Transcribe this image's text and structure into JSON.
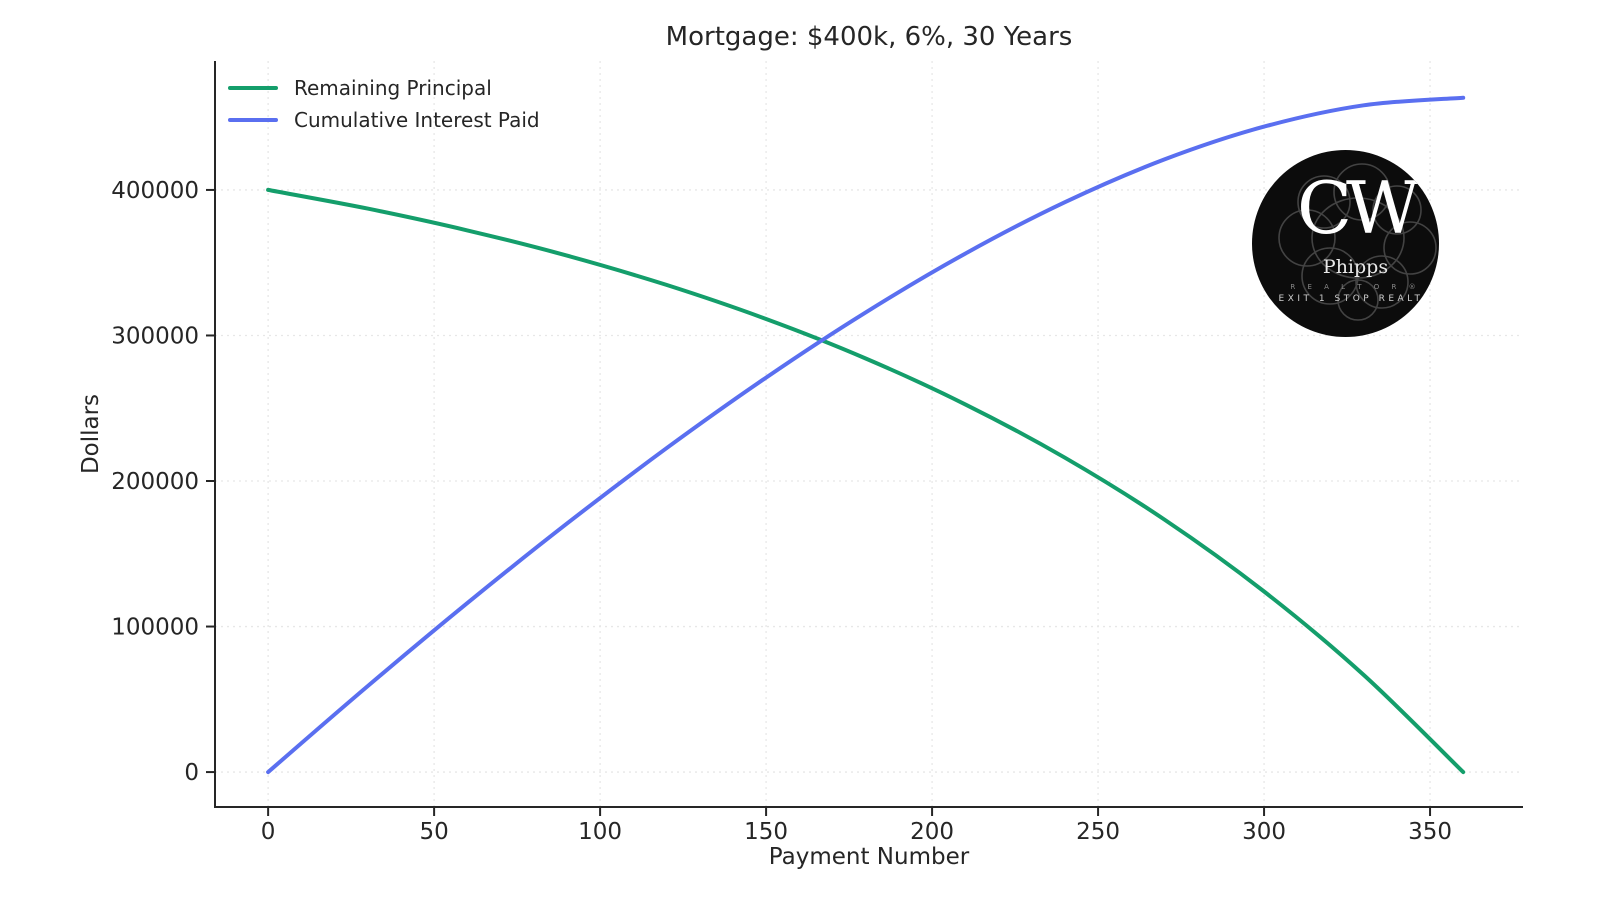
{
  "title": "Mortgage: $400k, 6%, 30 Years",
  "axes": {
    "x_label": "Payment Number",
    "y_label": "Dollars"
  },
  "legend": {
    "items": [
      {
        "label": "Remaining Principal",
        "color": "#149e6b"
      },
      {
        "label": "Cumulative Interest Paid",
        "color": "#5a6ff0"
      }
    ]
  },
  "colors": {
    "principal_line": "#149e6b",
    "interest_line": "#5a6ff0",
    "axis": "#262626",
    "grid": "#e7e7e7",
    "text": "#262626"
  },
  "chart_data": {
    "type": "line",
    "title": "Mortgage: $400k, 6%, 30 Years",
    "xlabel": "Payment Number",
    "ylabel": "Dollars",
    "x": [
      0,
      30,
      60,
      90,
      120,
      150,
      180,
      210,
      240,
      270,
      300,
      330,
      360
    ],
    "series": [
      {
        "name": "Remaining Principal",
        "color": "#149e6b",
        "values": [
          400000,
          387146,
          372218,
          354879,
          334743,
          311354,
          284196,
          252648,
          216016,
          173480,
          124087,
          66752,
          0
        ]
      },
      {
        "name": "Cumulative Interest Paid",
        "color": "#5a6ff0",
        "values": [
          0,
          59092,
          116110,
          170717,
          222527,
          271084,
          315872,
          356270,
          391584,
          420994,
          443547,
          458158,
          463352
        ]
      }
    ],
    "x_ticks": [
      0,
      50,
      100,
      150,
      200,
      250,
      300,
      350
    ],
    "y_ticks": [
      0,
      100000,
      200000,
      300000,
      400000
    ],
    "xlim": [
      -16,
      378
    ],
    "ylim": [
      -24000,
      488600
    ],
    "grid": true,
    "grid_style": "dotted",
    "legend_position": "upper left",
    "line_width": 4
  },
  "logo": {
    "monogram": "CW",
    "name": "Phipps",
    "realtor_line": "R E A L T O R ®",
    "brokerage_line": "EXIT 1 STOP REALTY"
  }
}
